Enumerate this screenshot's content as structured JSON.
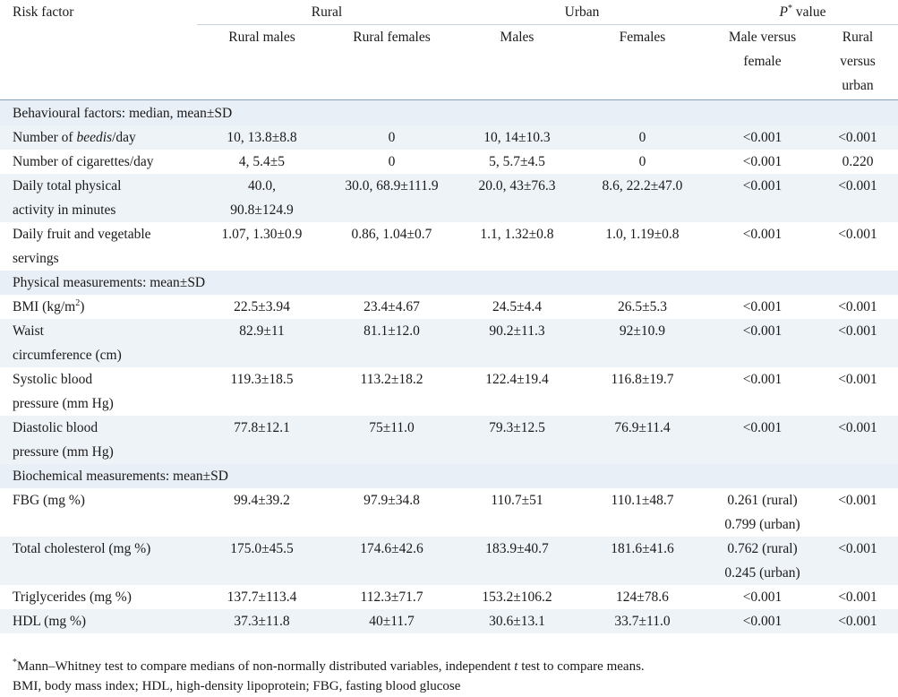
{
  "header": {
    "risk_factor": "Risk factor",
    "rural": "Rural",
    "urban": "Urban",
    "p_label_italic": "P",
    "p_label_sup": "*",
    "p_label_rest": " value",
    "rural_males": "Rural males",
    "rural_females": "Rural females",
    "males": "Males",
    "females": "Females",
    "male_vs_female_1": "Male versus",
    "male_vs_female_2": "female",
    "rural_vs_urban_1": "Rural",
    "rural_vs_urban_2": "versus",
    "rural_vs_urban_3": "urban"
  },
  "sections": {
    "behavioural": "Behavioural factors: median, mean±SD",
    "physical": "Physical measurements: mean±SD",
    "biochemical": "Biochemical measurements: mean±SD"
  },
  "rows": {
    "beedis": {
      "label_pre": "Number of ",
      "label_em": "beedis",
      "label_post": "/day",
      "rm": "10, 13.8±8.8",
      "rf": "0",
      "um": "10, 14±10.3",
      "uf": "0",
      "pmf": "<0.001",
      "pru": "<0.001"
    },
    "cigarettes": {
      "label": "Number of cigarettes/day",
      "rm": "4, 5.4±5",
      "rf": "0",
      "um": "5, 5.7±4.5",
      "uf": "0",
      "pmf": "<0.001",
      "pru": "0.220"
    },
    "activity": {
      "label1": "Daily total physical",
      "label2": "activity in minutes",
      "rm1": "40.0,",
      "rm2": "90.8±124.9",
      "rf": "30.0, 68.9±111.9",
      "um": "20.0, 43±76.3",
      "uf": "8.6, 22.2±47.0",
      "pmf": "<0.001",
      "pru": "<0.001"
    },
    "fruit": {
      "label1": "Daily fruit and vegetable",
      "label2": "servings",
      "rm": "1.07, 1.30±0.9",
      "rf": "0.86, 1.04±0.7",
      "um": "1.1, 1.32±0.8",
      "uf": "1.0, 1.19±0.8",
      "pmf": "<0.001",
      "pru": "<0.001"
    },
    "bmi": {
      "label_pre": "BMI (kg/m",
      "label_sup": "2",
      "label_post": ")",
      "rm": "22.5±3.94",
      "rf": "23.4±4.67",
      "um": "24.5±4.4",
      "uf": "26.5±5.3",
      "pmf": "<0.001",
      "pru": "<0.001"
    },
    "waist": {
      "label1": "Waist",
      "label2": "circumference (cm)",
      "rm": "82.9±11",
      "rf": "81.1±12.0",
      "um": "90.2±11.3",
      "uf": "92±10.9",
      "pmf": "<0.001",
      "pru": "<0.001"
    },
    "systolic": {
      "label1": "Systolic blood",
      "label2": "pressure (mm Hg)",
      "rm": "119.3±18.5",
      "rf": "113.2±18.2",
      "um": "122.4±19.4",
      "uf": "116.8±19.7",
      "pmf": "<0.001",
      "pru": "<0.001"
    },
    "diastolic": {
      "label1": "Diastolic blood",
      "label2": "pressure (mm Hg)",
      "rm": "77.8±12.1",
      "rf": "75±11.0",
      "um": "79.3±12.5",
      "uf": "76.9±11.4",
      "pmf": "<0.001",
      "pru": "<0.001"
    },
    "fbg": {
      "label": "FBG (mg %)",
      "rm": "99.4±39.2",
      "rf": "97.9±34.8",
      "um": "110.7±51",
      "uf": "110.1±48.7",
      "pmf1": "0.261 (rural)",
      "pmf2": "0.799 (urban)",
      "pru": "<0.001"
    },
    "cholesterol": {
      "label": "Total cholesterol (mg %)",
      "rm": "175.0±45.5",
      "rf": "174.6±42.6",
      "um": "183.9±40.7",
      "uf": "181.6±41.6",
      "pmf1": "0.762 (rural)",
      "pmf2": "0.245 (urban)",
      "pru": "<0.001"
    },
    "triglycerides": {
      "label": "Triglycerides (mg %)",
      "rm": "137.7±113.4",
      "rf": "112.3±71.7",
      "um": "153.2±106.2",
      "uf": "124±78.6",
      "pmf": "<0.001",
      "pru": "<0.001"
    },
    "hdl": {
      "label": "HDL (mg %)",
      "rm": "37.3±11.8",
      "rf": "40±11.7",
      "um": "30.6±13.1",
      "uf": "33.7±11.0",
      "pmf": "<0.001",
      "pru": "<0.001"
    }
  },
  "footnotes": {
    "sup": "*",
    "line1_pre": "Mann–Whitney test to compare medians of non-normally distributed variables, independent ",
    "line1_em": "t",
    "line1_post": " test to compare means.",
    "line2": "BMI, body mass index; HDL, high-density lipoprotein; FBG, fasting blood glucose"
  }
}
